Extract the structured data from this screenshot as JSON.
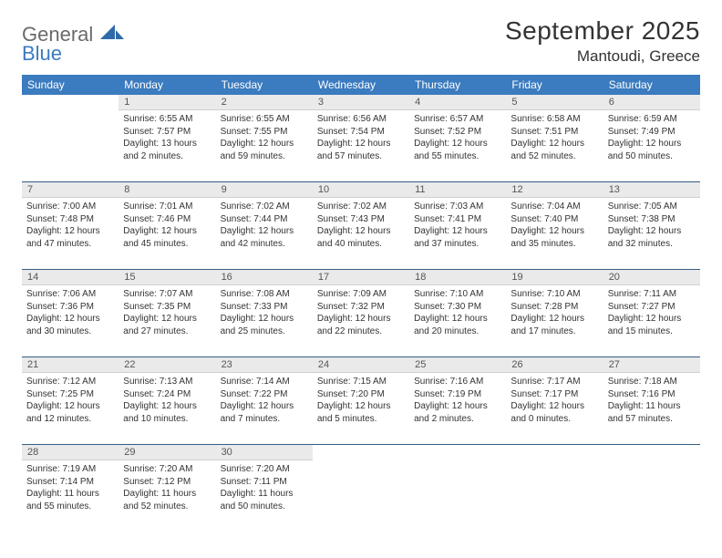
{
  "brand": {
    "general": "General",
    "blue": "Blue"
  },
  "title": "September 2025",
  "location": "Mantoudi, Greece",
  "colors": {
    "header_bg": "#3b7bbf",
    "header_fg": "#ffffff",
    "daynum_bg": "#eaeaea",
    "row_divider": "#355e86",
    "text": "#333333",
    "logo_gray": "#6a6a6a",
    "logo_blue": "#3b7bbf",
    "page_bg": "#ffffff"
  },
  "weekdays": [
    "Sunday",
    "Monday",
    "Tuesday",
    "Wednesday",
    "Thursday",
    "Friday",
    "Saturday"
  ],
  "weeks": [
    [
      {
        "n": "",
        "sunrise": "",
        "sunset": "",
        "daylight": ""
      },
      {
        "n": "1",
        "sunrise": "Sunrise: 6:55 AM",
        "sunset": "Sunset: 7:57 PM",
        "daylight": "Daylight: 13 hours and 2 minutes."
      },
      {
        "n": "2",
        "sunrise": "Sunrise: 6:55 AM",
        "sunset": "Sunset: 7:55 PM",
        "daylight": "Daylight: 12 hours and 59 minutes."
      },
      {
        "n": "3",
        "sunrise": "Sunrise: 6:56 AM",
        "sunset": "Sunset: 7:54 PM",
        "daylight": "Daylight: 12 hours and 57 minutes."
      },
      {
        "n": "4",
        "sunrise": "Sunrise: 6:57 AM",
        "sunset": "Sunset: 7:52 PM",
        "daylight": "Daylight: 12 hours and 55 minutes."
      },
      {
        "n": "5",
        "sunrise": "Sunrise: 6:58 AM",
        "sunset": "Sunset: 7:51 PM",
        "daylight": "Daylight: 12 hours and 52 minutes."
      },
      {
        "n": "6",
        "sunrise": "Sunrise: 6:59 AM",
        "sunset": "Sunset: 7:49 PM",
        "daylight": "Daylight: 12 hours and 50 minutes."
      }
    ],
    [
      {
        "n": "7",
        "sunrise": "Sunrise: 7:00 AM",
        "sunset": "Sunset: 7:48 PM",
        "daylight": "Daylight: 12 hours and 47 minutes."
      },
      {
        "n": "8",
        "sunrise": "Sunrise: 7:01 AM",
        "sunset": "Sunset: 7:46 PM",
        "daylight": "Daylight: 12 hours and 45 minutes."
      },
      {
        "n": "9",
        "sunrise": "Sunrise: 7:02 AM",
        "sunset": "Sunset: 7:44 PM",
        "daylight": "Daylight: 12 hours and 42 minutes."
      },
      {
        "n": "10",
        "sunrise": "Sunrise: 7:02 AM",
        "sunset": "Sunset: 7:43 PM",
        "daylight": "Daylight: 12 hours and 40 minutes."
      },
      {
        "n": "11",
        "sunrise": "Sunrise: 7:03 AM",
        "sunset": "Sunset: 7:41 PM",
        "daylight": "Daylight: 12 hours and 37 minutes."
      },
      {
        "n": "12",
        "sunrise": "Sunrise: 7:04 AM",
        "sunset": "Sunset: 7:40 PM",
        "daylight": "Daylight: 12 hours and 35 minutes."
      },
      {
        "n": "13",
        "sunrise": "Sunrise: 7:05 AM",
        "sunset": "Sunset: 7:38 PM",
        "daylight": "Daylight: 12 hours and 32 minutes."
      }
    ],
    [
      {
        "n": "14",
        "sunrise": "Sunrise: 7:06 AM",
        "sunset": "Sunset: 7:36 PM",
        "daylight": "Daylight: 12 hours and 30 minutes."
      },
      {
        "n": "15",
        "sunrise": "Sunrise: 7:07 AM",
        "sunset": "Sunset: 7:35 PM",
        "daylight": "Daylight: 12 hours and 27 minutes."
      },
      {
        "n": "16",
        "sunrise": "Sunrise: 7:08 AM",
        "sunset": "Sunset: 7:33 PM",
        "daylight": "Daylight: 12 hours and 25 minutes."
      },
      {
        "n": "17",
        "sunrise": "Sunrise: 7:09 AM",
        "sunset": "Sunset: 7:32 PM",
        "daylight": "Daylight: 12 hours and 22 minutes."
      },
      {
        "n": "18",
        "sunrise": "Sunrise: 7:10 AM",
        "sunset": "Sunset: 7:30 PM",
        "daylight": "Daylight: 12 hours and 20 minutes."
      },
      {
        "n": "19",
        "sunrise": "Sunrise: 7:10 AM",
        "sunset": "Sunset: 7:28 PM",
        "daylight": "Daylight: 12 hours and 17 minutes."
      },
      {
        "n": "20",
        "sunrise": "Sunrise: 7:11 AM",
        "sunset": "Sunset: 7:27 PM",
        "daylight": "Daylight: 12 hours and 15 minutes."
      }
    ],
    [
      {
        "n": "21",
        "sunrise": "Sunrise: 7:12 AM",
        "sunset": "Sunset: 7:25 PM",
        "daylight": "Daylight: 12 hours and 12 minutes."
      },
      {
        "n": "22",
        "sunrise": "Sunrise: 7:13 AM",
        "sunset": "Sunset: 7:24 PM",
        "daylight": "Daylight: 12 hours and 10 minutes."
      },
      {
        "n": "23",
        "sunrise": "Sunrise: 7:14 AM",
        "sunset": "Sunset: 7:22 PM",
        "daylight": "Daylight: 12 hours and 7 minutes."
      },
      {
        "n": "24",
        "sunrise": "Sunrise: 7:15 AM",
        "sunset": "Sunset: 7:20 PM",
        "daylight": "Daylight: 12 hours and 5 minutes."
      },
      {
        "n": "25",
        "sunrise": "Sunrise: 7:16 AM",
        "sunset": "Sunset: 7:19 PM",
        "daylight": "Daylight: 12 hours and 2 minutes."
      },
      {
        "n": "26",
        "sunrise": "Sunrise: 7:17 AM",
        "sunset": "Sunset: 7:17 PM",
        "daylight": "Daylight: 12 hours and 0 minutes."
      },
      {
        "n": "27",
        "sunrise": "Sunrise: 7:18 AM",
        "sunset": "Sunset: 7:16 PM",
        "daylight": "Daylight: 11 hours and 57 minutes."
      }
    ],
    [
      {
        "n": "28",
        "sunrise": "Sunrise: 7:19 AM",
        "sunset": "Sunset: 7:14 PM",
        "daylight": "Daylight: 11 hours and 55 minutes."
      },
      {
        "n": "29",
        "sunrise": "Sunrise: 7:20 AM",
        "sunset": "Sunset: 7:12 PM",
        "daylight": "Daylight: 11 hours and 52 minutes."
      },
      {
        "n": "30",
        "sunrise": "Sunrise: 7:20 AM",
        "sunset": "Sunset: 7:11 PM",
        "daylight": "Daylight: 11 hours and 50 minutes."
      },
      {
        "n": "",
        "sunrise": "",
        "sunset": "",
        "daylight": ""
      },
      {
        "n": "",
        "sunrise": "",
        "sunset": "",
        "daylight": ""
      },
      {
        "n": "",
        "sunrise": "",
        "sunset": "",
        "daylight": ""
      },
      {
        "n": "",
        "sunrise": "",
        "sunset": "",
        "daylight": ""
      }
    ]
  ]
}
